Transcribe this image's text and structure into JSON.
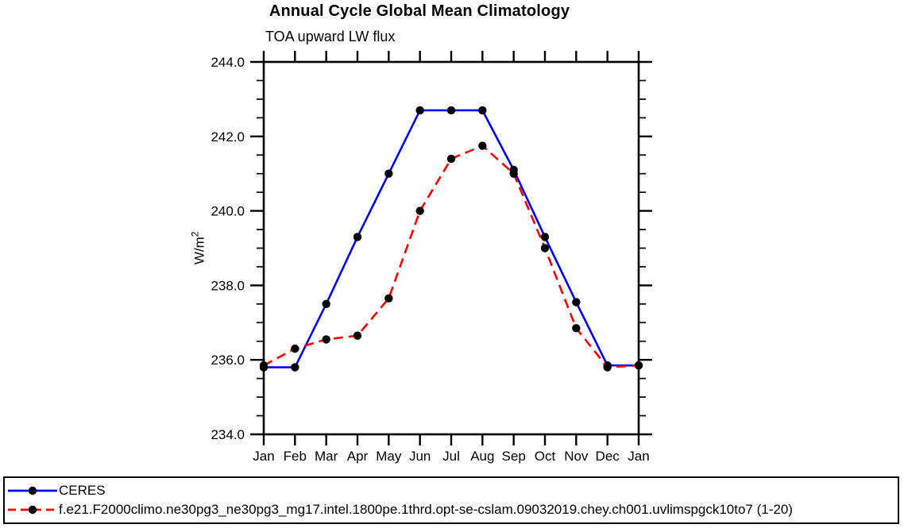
{
  "page": {
    "title": "Annual Cycle Global Mean Climatology",
    "subtitle": "TOA upward LW flux",
    "ylabel": "W/m²"
  },
  "colors": {
    "axis": "#000000",
    "marker": "#000000",
    "ceres_line": "#0000ff",
    "model_line": "#ff0000",
    "legend_border": "#000000",
    "background": "#ffffff"
  },
  "chart_data": {
    "type": "line",
    "title": "Annual Cycle Global Mean Climatology",
    "subtitle": "TOA upward LW flux",
    "xlabel": "",
    "ylabel": "W/m²",
    "x_categories": [
      "Jan",
      "Feb",
      "Mar",
      "Apr",
      "May",
      "Jun",
      "Jul",
      "Aug",
      "Sep",
      "Oct",
      "Nov",
      "Dec",
      "Jan"
    ],
    "ylim": [
      234.0,
      244.0
    ],
    "ytick_interval": 2.0,
    "ytick_minor_interval": 0.5,
    "ytick_labels": [
      "234.0",
      "236.0",
      "238.0",
      "240.0",
      "242.0",
      "244.0"
    ],
    "grid": false,
    "legend_position": "bottom-box-full-width",
    "marker": "filled-circle",
    "marker_color": "#000000",
    "series": [
      {
        "key": "ceres",
        "name": "CERES",
        "color": "#0000ff",
        "line_style": "solid",
        "values": [
          235.8,
          235.8,
          237.5,
          239.3,
          241.0,
          242.7,
          242.7,
          242.7,
          241.1,
          239.3,
          237.55,
          235.85,
          235.85
        ]
      },
      {
        "key": "model",
        "name": "f.e21.F2000climo.ne30pg3_ne30pg3_mg17.intel.1800pe.1thrd.opt-se-cslam.09032019.chey.ch001.uvlimspgck10to7 (1-20)",
        "color": "#ff0000",
        "line_style": "dashed",
        "values": [
          235.85,
          236.3,
          236.55,
          236.65,
          237.65,
          240.0,
          241.4,
          241.75,
          241.0,
          239.0,
          236.85,
          235.8,
          235.85
        ]
      }
    ]
  }
}
